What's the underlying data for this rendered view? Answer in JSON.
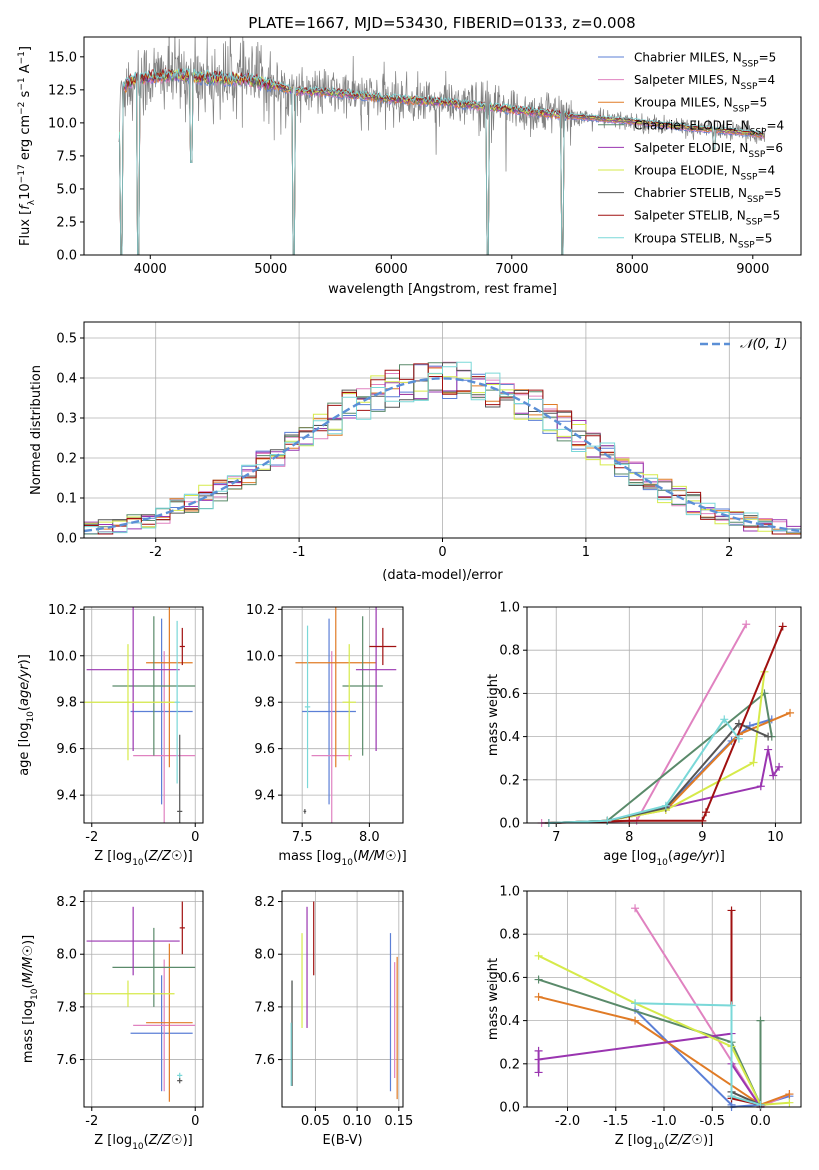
{
  "title": "PLATE=1667, MJD=53430, FIBERID=0133, z=0.008",
  "colors": {
    "chabrier_miles": "#5b7fd6",
    "salpeter_miles": "#e082c0",
    "kroupa_miles": "#e07b26",
    "chabrier_elodie": "#5a8a6a",
    "salpeter_elodie": "#9a35b0",
    "kroupa_elodie": "#d6ea4a",
    "chabrier_stelib": "#555555",
    "salpeter_stelib": "#a01010",
    "kroupa_stelib": "#7ad8d8",
    "data_spectrum": "#808080",
    "grid": "#b0b0b0"
  },
  "chart_data": [
    {
      "id": "spectrum",
      "type": "line",
      "title": "PLATE=1667, MJD=53430, FIBERID=0133, z=0.008",
      "xlabel": "wavelength [Angstrom, rest frame]",
      "ylabel_parts": [
        "Flux [",
        "f",
        "λ",
        "10",
        "−17",
        " erg cm",
        "−2",
        " s",
        "−1",
        " A",
        "−1",
        "]"
      ],
      "xlim": [
        3450,
        9400
      ],
      "ylim": [
        0,
        16.5
      ],
      "xticks": [
        4000,
        5000,
        6000,
        7000,
        8000,
        9000
      ],
      "yticks": [
        "0.0",
        "2.5",
        "5.0",
        "7.5",
        "10.0",
        "12.5",
        "15.0"
      ],
      "grid": false,
      "legend_position": "top-right",
      "legend": [
        {
          "pre": "Chabrier MILES, N",
          "sub": "SSP",
          "post": "=5",
          "color_key": "chabrier_miles"
        },
        {
          "pre": "Salpeter MILES, N",
          "sub": "SSP",
          "post": "=4",
          "color_key": "salpeter_miles"
        },
        {
          "pre": "Kroupa MILES, N",
          "sub": "SSP",
          "post": "=5",
          "color_key": "kroupa_miles"
        },
        {
          "pre": "Chabrier ELODIE, N",
          "sub": "SSP",
          "post": "=4",
          "color_key": "chabrier_elodie"
        },
        {
          "pre": "Salpeter ELODIE, N",
          "sub": "SSP",
          "post": "=6",
          "color_key": "salpeter_elodie"
        },
        {
          "pre": "Kroupa ELODIE, N",
          "sub": "SSP",
          "post": "=4",
          "color_key": "kroupa_elodie"
        },
        {
          "pre": "Chabrier STELIB, N",
          "sub": "SSP",
          "post": "=5",
          "color_key": "chabrier_stelib"
        },
        {
          "pre": "Salpeter STELIB, N",
          "sub": "SSP",
          "post": "=5",
          "color_key": "salpeter_stelib"
        },
        {
          "pre": "Kroupa STELIB, N",
          "sub": "SSP",
          "post": "=5",
          "color_key": "kroupa_stelib"
        }
      ],
      "continuum": [
        [
          3750,
          12.5
        ],
        [
          3850,
          13.2
        ],
        [
          4000,
          13.5
        ],
        [
          4200,
          13.6
        ],
        [
          4500,
          13.4
        ],
        [
          4800,
          13.3
        ],
        [
          5000,
          12.9
        ],
        [
          5200,
          12.4
        ],
        [
          5500,
          12.3
        ],
        [
          6000,
          11.8
        ],
        [
          6500,
          11.5
        ],
        [
          7000,
          11.0
        ],
        [
          7500,
          10.5
        ],
        [
          8000,
          10.1
        ],
        [
          8500,
          9.6
        ],
        [
          9000,
          9.2
        ],
        [
          9100,
          9.0
        ]
      ],
      "dips": [
        [
          3760,
          0
        ],
        [
          3900,
          0
        ],
        [
          4340,
          7.0
        ],
        [
          5190,
          0
        ],
        [
          6800,
          0
        ],
        [
          7420,
          0
        ],
        [
          8680,
          8.0
        ]
      ]
    },
    {
      "id": "residual-histogram",
      "type": "histogram",
      "xlabel": "(data-model)/error",
      "ylabel": "Normed distribution",
      "xlim": [
        -2.5,
        2.5
      ],
      "ylim": [
        0,
        0.54
      ],
      "xticks": [
        "-2",
        "-1",
        "0",
        "1",
        "2"
      ],
      "yticks": [
        "0.0",
        "0.1",
        "0.2",
        "0.3",
        "0.4",
        "0.5"
      ],
      "grid": true,
      "legend_position": "top-right",
      "legend_label": "𝒩(0, 1)",
      "bin_width": 0.1,
      "bin_start": -2.5,
      "gaussian": {
        "mean": 0,
        "sigma": 1
      }
    },
    {
      "id": "age-vs-z",
      "type": "errorbar",
      "xlabel": "Z [log10(Z/Z☉)]",
      "ylabel": "age  [log10(age/yr)]",
      "xlim": [
        -2.15,
        0.15
      ],
      "ylim": [
        9.28,
        10.21
      ],
      "xticks": [
        "-2",
        "0"
      ],
      "yticks": [
        "9.4",
        "9.6",
        "9.8",
        "10.0",
        "10.2"
      ],
      "grid": true,
      "points": [
        {
          "color_key": "chabrier_miles",
          "x": -0.65,
          "y": 9.76,
          "xerr": 0.6,
          "yerr": 0.4
        },
        {
          "color_key": "salpeter_miles",
          "x": -0.6,
          "y": 9.57,
          "xerr": 0.6,
          "yerr": 0.45
        },
        {
          "color_key": "kroupa_miles",
          "x": -0.5,
          "y": 9.97,
          "xerr": 0.45,
          "yerr": 0.45
        },
        {
          "color_key": "chabrier_elodie",
          "x": -0.8,
          "y": 9.87,
          "xerr": 0.8,
          "yerr": 0.3
        },
        {
          "color_key": "salpeter_elodie",
          "x": -1.2,
          "y": 9.94,
          "xerr": 0.9,
          "yerr": 0.35
        },
        {
          "color_key": "kroupa_elodie",
          "x": -1.3,
          "y": 9.8,
          "xerr": 0.9,
          "yerr": 0.25
        },
        {
          "color_key": "chabrier_stelib",
          "x": -0.3,
          "y": 9.33,
          "xerr": 0.05,
          "yerr": 0.33
        },
        {
          "color_key": "salpeter_stelib",
          "x": -0.25,
          "y": 10.04,
          "xerr": 0.05,
          "yerr": 0.08
        },
        {
          "color_key": "kroupa_stelib",
          "x": -0.35,
          "y": 9.8,
          "xerr": 0.05,
          "yerr": 0.35
        }
      ]
    },
    {
      "id": "age-vs-mass",
      "type": "errorbar",
      "xlabel": "mass [log10(M/M☉)]",
      "ylabel": "",
      "xlim": [
        7.35,
        8.25
      ],
      "ylim": [
        9.28,
        10.21
      ],
      "xticks": [
        "7.5",
        "8.0"
      ],
      "yticks": [
        "9.4",
        "9.6",
        "9.8",
        "10.0",
        "10.2"
      ],
      "grid": true,
      "points": [
        {
          "color_key": "chabrier_miles",
          "x": 7.7,
          "y": 9.76,
          "xerr": 0.2,
          "yerr": 0.4
        },
        {
          "color_key": "salpeter_miles",
          "x": 7.72,
          "y": 9.57,
          "xerr": 0.15,
          "yerr": 0.45
        },
        {
          "color_key": "kroupa_miles",
          "x": 7.75,
          "y": 9.97,
          "xerr": 0.3,
          "yerr": 0.45
        },
        {
          "color_key": "chabrier_elodie",
          "x": 7.95,
          "y": 9.87,
          "xerr": 0.15,
          "yerr": 0.3
        },
        {
          "color_key": "salpeter_elodie",
          "x": 8.05,
          "y": 9.94,
          "xerr": 0.15,
          "yerr": 0.35
        },
        {
          "color_key": "kroupa_elodie",
          "x": 7.85,
          "y": 9.8,
          "xerr": 0.05,
          "yerr": 0.25
        },
        {
          "color_key": "chabrier_stelib",
          "x": 7.52,
          "y": 9.33,
          "xerr": 0.01,
          "yerr": 0.01
        },
        {
          "color_key": "salpeter_stelib",
          "x": 8.1,
          "y": 10.04,
          "xerr": 0.1,
          "yerr": 0.08
        },
        {
          "color_key": "kroupa_stelib",
          "x": 7.54,
          "y": 9.78,
          "xerr": 0.02,
          "yerr": 0.35
        }
      ]
    },
    {
      "id": "mass-weight-vs-age",
      "type": "line",
      "xlabel": "age  [log10(age/yr)]",
      "ylabel": "mass weight",
      "xlim": [
        6.6,
        10.35
      ],
      "ylim": [
        0,
        1.0
      ],
      "xticks": [
        "7",
        "8",
        "9",
        "10"
      ],
      "yticks": [
        "0.0",
        "0.2",
        "0.4",
        "0.6",
        "0.8",
        "1.0"
      ],
      "grid": true,
      "series": [
        {
          "color_key": "chabrier_miles",
          "x": [
            6.9,
            7.7,
            8.5,
            9.4,
            9.65,
            9.95
          ],
          "y": [
            0.0,
            0.01,
            0.07,
            0.38,
            0.45,
            0.48
          ]
        },
        {
          "color_key": "salpeter_miles",
          "x": [
            6.8,
            8.1,
            9.6
          ],
          "y": [
            0.0,
            0.01,
            0.92
          ]
        },
        {
          "color_key": "kroupa_miles",
          "x": [
            6.9,
            7.7,
            8.5,
            9.5,
            10.2
          ],
          "y": [
            0.0,
            0.01,
            0.06,
            0.41,
            0.51
          ]
        },
        {
          "color_key": "chabrier_elodie",
          "x": [
            6.9,
            7.7,
            9.85,
            9.95
          ],
          "y": [
            0.0,
            0.01,
            0.6,
            0.4
          ]
        },
        {
          "color_key": "salpeter_elodie",
          "x": [
            6.9,
            7.7,
            9.8,
            9.9,
            9.97,
            10.05
          ],
          "y": [
            0.0,
            0.01,
            0.17,
            0.34,
            0.22,
            0.26
          ]
        },
        {
          "color_key": "kroupa_elodie",
          "x": [
            6.9,
            7.7,
            8.5,
            9.7,
            9.85
          ],
          "y": [
            0.0,
            0.01,
            0.06,
            0.28,
            0.7
          ]
        },
        {
          "color_key": "chabrier_stelib",
          "x": [
            6.9,
            7.7,
            8.5,
            9.5,
            9.9
          ],
          "y": [
            0.0,
            0.01,
            0.07,
            0.46,
            0.4
          ]
        },
        {
          "color_key": "salpeter_stelib",
          "x": [
            6.9,
            8.0,
            9.0,
            9.05,
            10.1
          ],
          "y": [
            0.0,
            0.01,
            0.01,
            0.05,
            0.91
          ]
        },
        {
          "color_key": "kroupa_stelib",
          "x": [
            6.9,
            7.7,
            8.5,
            9.3,
            9.5
          ],
          "y": [
            0.0,
            0.01,
            0.08,
            0.48,
            0.39
          ]
        }
      ]
    },
    {
      "id": "mass-vs-z",
      "type": "errorbar",
      "xlabel": "Z [log10(Z/Z☉)]",
      "ylabel": "mass [log10(M/M☉)]",
      "xlim": [
        -2.15,
        0.15
      ],
      "ylim": [
        7.42,
        8.24
      ],
      "xticks": [
        "-2",
        "0"
      ],
      "yticks": [
        "7.6",
        "7.8",
        "8.0",
        "8.2"
      ],
      "grid": true,
      "points": [
        {
          "color_key": "chabrier_miles",
          "x": -0.65,
          "y": 7.7,
          "xerr": 0.6,
          "yerr": 0.22
        },
        {
          "color_key": "salpeter_miles",
          "x": -0.6,
          "y": 7.73,
          "xerr": 0.6,
          "yerr": 0.25
        },
        {
          "color_key": "kroupa_miles",
          "x": -0.5,
          "y": 7.74,
          "xerr": 0.45,
          "yerr": 0.3
        },
        {
          "color_key": "chabrier_elodie",
          "x": -0.8,
          "y": 7.95,
          "xerr": 0.8,
          "yerr": 0.15
        },
        {
          "color_key": "salpeter_elodie",
          "x": -1.2,
          "y": 8.05,
          "xerr": 0.9,
          "yerr": 0.13
        },
        {
          "color_key": "kroupa_elodie",
          "x": -1.3,
          "y": 7.85,
          "xerr": 0.9,
          "yerr": 0.05
        },
        {
          "color_key": "chabrier_stelib",
          "x": -0.3,
          "y": 7.52,
          "xerr": 0.05,
          "yerr": 0.01
        },
        {
          "color_key": "salpeter_stelib",
          "x": -0.25,
          "y": 8.1,
          "xerr": 0.05,
          "yerr": 0.1
        },
        {
          "color_key": "kroupa_stelib",
          "x": -0.3,
          "y": 7.54,
          "xerr": 0.05,
          "yerr": 0.01
        }
      ]
    },
    {
      "id": "mass-vs-ebv",
      "type": "errorbar",
      "xlabel": "E(B-V)",
      "ylabel": "",
      "xlim": [
        0.01,
        0.155
      ],
      "ylim": [
        7.42,
        8.24
      ],
      "xticks": [
        "0.05",
        "0.10",
        "0.15"
      ],
      "yticks": [
        "7.6",
        "7.8",
        "8.0",
        "8.2"
      ],
      "grid": true,
      "points": [
        {
          "color_key": "chabrier_miles",
          "x": 0.14,
          "y": 7.78,
          "xerr": 0,
          "yerr": 0.3
        },
        {
          "color_key": "salpeter_miles",
          "x": 0.145,
          "y": 7.75,
          "xerr": 0,
          "yerr": 0.22
        },
        {
          "color_key": "kroupa_miles",
          "x": 0.148,
          "y": 7.72,
          "xerr": 0,
          "yerr": 0.27
        },
        {
          "color_key": "chabrier_elodie",
          "x": 0.022,
          "y": 7.7,
          "xerr": 0,
          "yerr": 0.2
        },
        {
          "color_key": "salpeter_elodie",
          "x": 0.04,
          "y": 7.95,
          "xerr": 0,
          "yerr": 0.23
        },
        {
          "color_key": "kroupa_elodie",
          "x": 0.034,
          "y": 7.9,
          "xerr": 0,
          "yerr": 0.18
        },
        {
          "color_key": "chabrier_stelib",
          "x": 0.022,
          "y": 7.7,
          "xerr": 0,
          "yerr": 0.2
        },
        {
          "color_key": "salpeter_stelib",
          "x": 0.048,
          "y": 8.06,
          "xerr": 0,
          "yerr": 0.14
        },
        {
          "color_key": "kroupa_stelib",
          "x": 0.021,
          "y": 7.62,
          "xerr": 0,
          "yerr": 0.12
        }
      ]
    },
    {
      "id": "mass-weight-vs-z",
      "type": "line",
      "xlabel": "Z [log10(Z/Z☉)]",
      "ylabel": "mass weight",
      "xlim": [
        -2.42,
        0.42
      ],
      "ylim": [
        0,
        1.0
      ],
      "xticks": [
        "-2.0",
        "-1.5",
        "-1.0",
        "-0.5",
        "0.0"
      ],
      "xtick_values": [
        -2.0,
        -1.5,
        -1.0,
        -0.5,
        0.0
      ],
      "yticks": [
        "0.0",
        "0.2",
        "0.4",
        "0.6",
        "0.8",
        "1.0"
      ],
      "grid": true,
      "series": [
        {
          "color_key": "chabrier_miles",
          "x": [
            -1.3,
            -0.3,
            -0.3,
            0.0,
            0.3
          ],
          "y": [
            0.45,
            0.01,
            0.0,
            0.01,
            0.05
          ]
        },
        {
          "color_key": "salpeter_miles",
          "x": [
            -1.3,
            0.0,
            0.3
          ],
          "y": [
            0.92,
            0.0,
            0.06
          ]
        },
        {
          "color_key": "kroupa_miles",
          "x": [
            -2.3,
            -1.3,
            0.0,
            0.3
          ],
          "y": [
            0.51,
            0.4,
            0.01,
            0.06
          ]
        },
        {
          "color_key": "chabrier_elodie",
          "x": [
            -2.3,
            -0.3,
            0.0,
            0.0
          ],
          "y": [
            0.59,
            0.3,
            0.01,
            0.4
          ]
        },
        {
          "color_key": "salpeter_elodie",
          "x": [
            -2.3,
            -2.3,
            -2.3,
            -0.3,
            -0.3,
            0.0
          ],
          "y": [
            0.26,
            0.16,
            0.22,
            0.34,
            0.2,
            0.0
          ]
        },
        {
          "color_key": "kroupa_elodie",
          "x": [
            -2.3,
            -1.3,
            -0.3,
            0.0,
            0.3
          ],
          "y": [
            0.7,
            0.48,
            0.28,
            0.01,
            0.02
          ]
        },
        {
          "color_key": "chabrier_stelib",
          "x": [
            -0.3,
            0.0,
            0.0
          ],
          "y": [
            0.07,
            0.01,
            0.0
          ]
        },
        {
          "color_key": "salpeter_stelib",
          "x": [
            -0.3,
            -0.3,
            -0.3,
            0.0
          ],
          "y": [
            0.91,
            0.05,
            0.04,
            0.01
          ]
        },
        {
          "color_key": "kroupa_stelib",
          "x": [
            -1.3,
            -0.3,
            -0.3,
            0.0
          ],
          "y": [
            0.48,
            0.47,
            0.05,
            0.01
          ]
        }
      ]
    }
  ]
}
